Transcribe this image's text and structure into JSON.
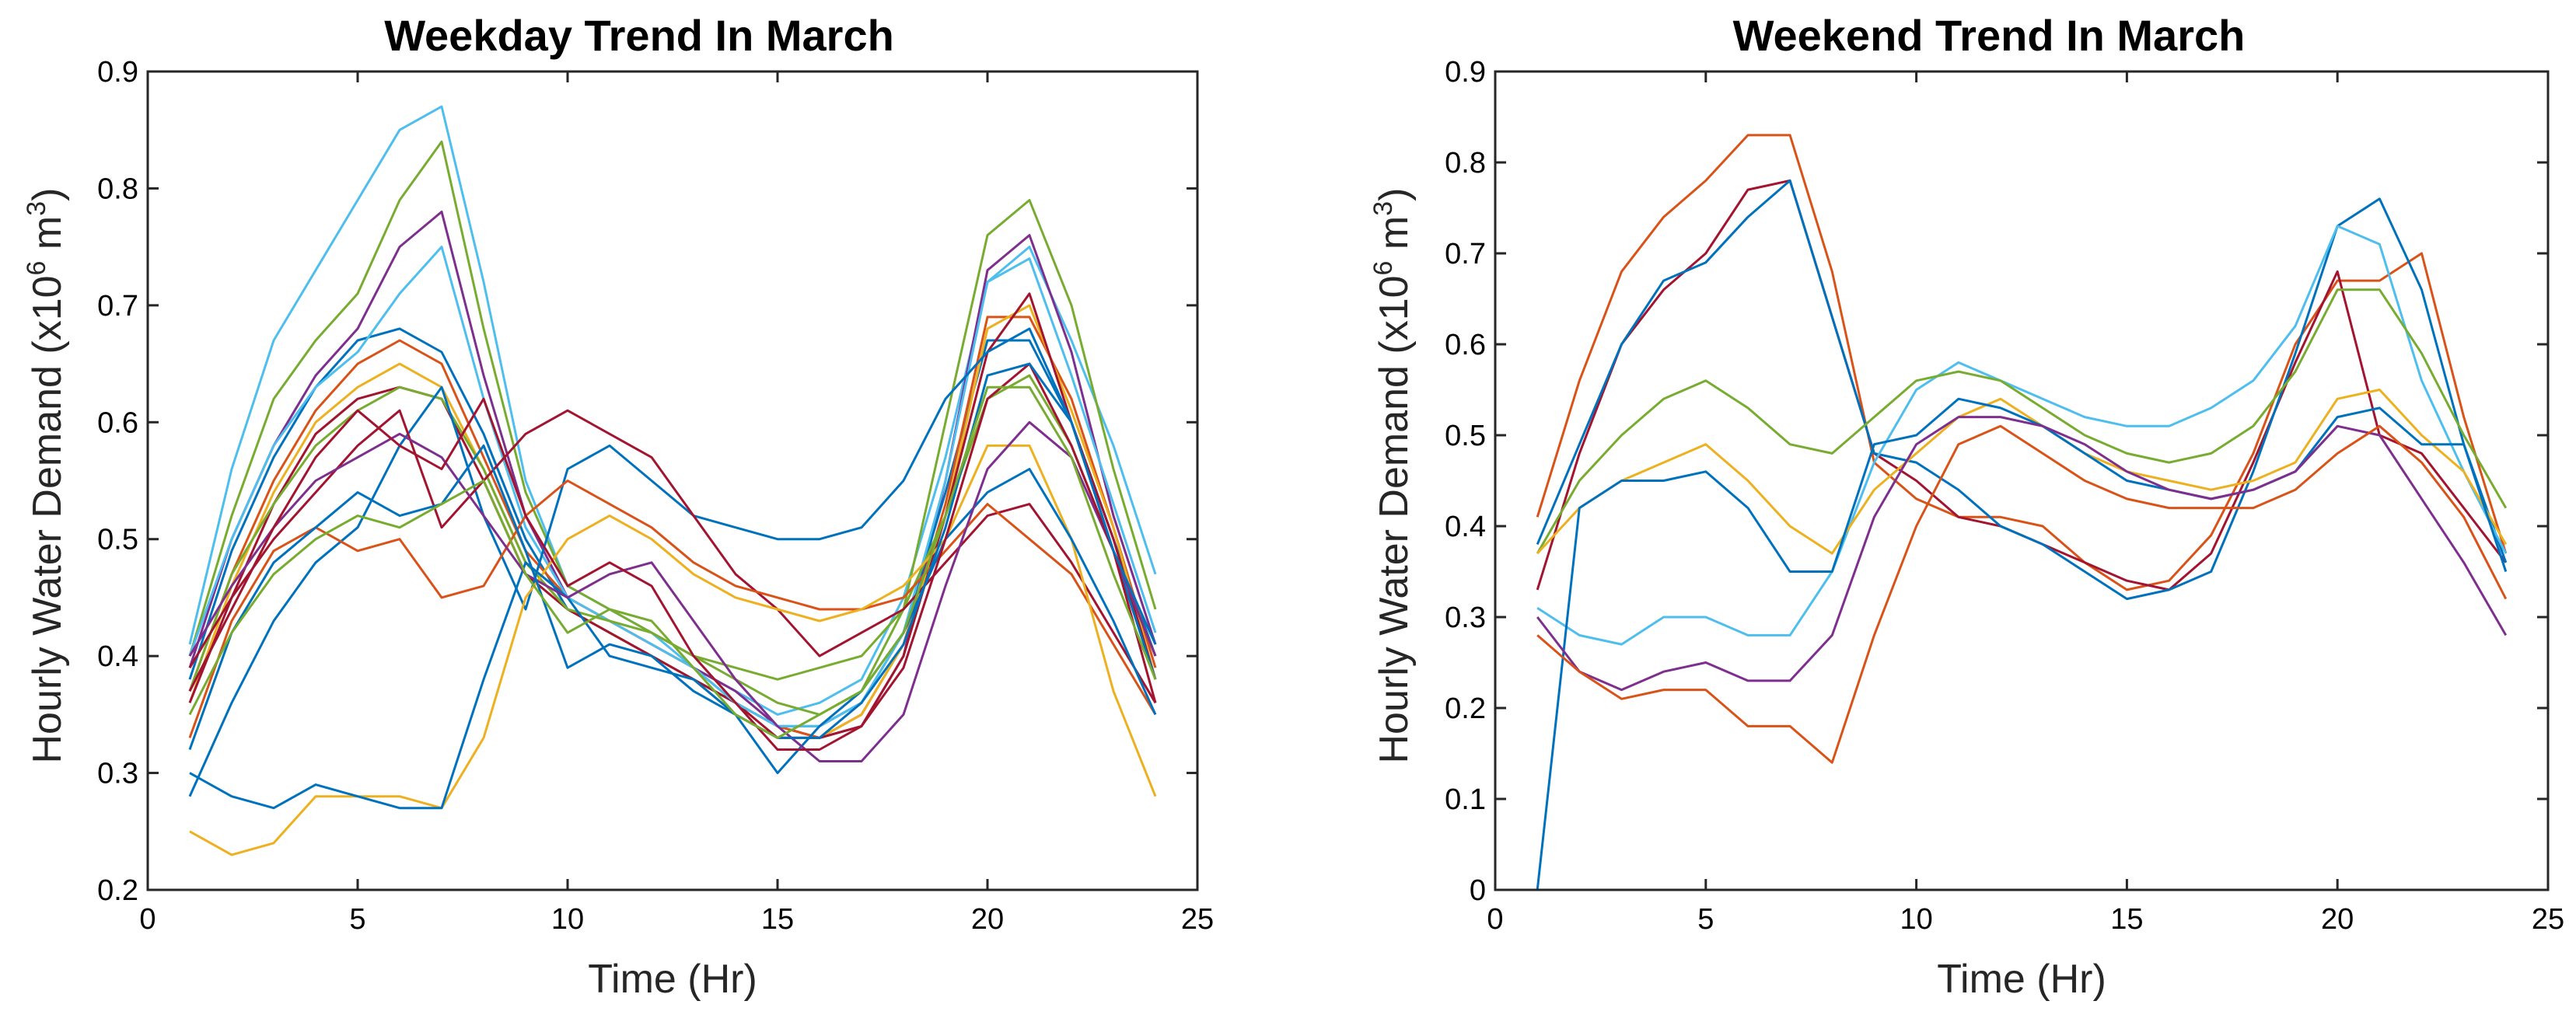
{
  "palette": [
    "#0072BD",
    "#D95319",
    "#EDB120",
    "#7E2F8E",
    "#77AC30",
    "#4DBEEE",
    "#A2142F"
  ],
  "chart_data": [
    {
      "type": "line",
      "title": "Weekday Trend In March",
      "xlabel": "Time (Hr)",
      "ylabel_prefix": "Hourly Water Demand (x10",
      "ylabel_exp": "6",
      "ylabel_mid": " m",
      "ylabel_exp2": "3",
      "ylabel_suffix": ")",
      "xlim": [
        0,
        25
      ],
      "ylim": [
        0.2,
        0.9
      ],
      "xticks": [
        0,
        5,
        10,
        15,
        20,
        25
      ],
      "yticks": [
        0.2,
        0.3,
        0.4,
        0.5,
        0.6,
        0.7,
        0.8,
        0.9
      ],
      "x": [
        1,
        2,
        3,
        4,
        5,
        6,
        7,
        8,
        9,
        10,
        11,
        12,
        13,
        14,
        15,
        16,
        17,
        18,
        19,
        20,
        21,
        22,
        23,
        24
      ],
      "series": [
        {
          "color": "#4DBEEE",
          "values": [
            0.41,
            0.56,
            0.67,
            0.73,
            0.79,
            0.85,
            0.87,
            0.72,
            0.55,
            0.46,
            0.44,
            0.42,
            0.39,
            0.37,
            0.35,
            0.36,
            0.38,
            0.45,
            0.57,
            0.72,
            0.75,
            0.67,
            0.58,
            0.47
          ]
        },
        {
          "color": "#77AC30",
          "values": [
            0.4,
            0.52,
            0.62,
            0.67,
            0.71,
            0.79,
            0.84,
            0.68,
            0.54,
            0.46,
            0.44,
            0.42,
            0.4,
            0.38,
            0.36,
            0.35,
            0.37,
            0.44,
            0.6,
            0.76,
            0.79,
            0.7,
            0.56,
            0.44
          ]
        },
        {
          "color": "#7E2F8E",
          "values": [
            0.39,
            0.5,
            0.58,
            0.64,
            0.68,
            0.75,
            0.78,
            0.64,
            0.52,
            0.45,
            0.43,
            0.41,
            0.39,
            0.37,
            0.34,
            0.33,
            0.34,
            0.4,
            0.55,
            0.73,
            0.76,
            0.66,
            0.52,
            0.41
          ]
        },
        {
          "color": "#0072BD",
          "values": [
            0.38,
            0.49,
            0.57,
            0.63,
            0.67,
            0.68,
            0.66,
            0.59,
            0.5,
            0.44,
            0.42,
            0.4,
            0.38,
            0.36,
            0.34,
            0.34,
            0.36,
            0.42,
            0.54,
            0.67,
            0.67,
            0.6,
            0.5,
            0.4
          ]
        },
        {
          "color": "#D95319",
          "values": [
            0.37,
            0.47,
            0.55,
            0.61,
            0.65,
            0.67,
            0.65,
            0.57,
            0.49,
            0.45,
            0.43,
            0.41,
            0.39,
            0.36,
            0.34,
            0.33,
            0.35,
            0.41,
            0.53,
            0.69,
            0.69,
            0.62,
            0.51,
            0.39
          ]
        },
        {
          "color": "#EDB120",
          "values": [
            0.36,
            0.46,
            0.54,
            0.6,
            0.63,
            0.65,
            0.63,
            0.56,
            0.48,
            0.44,
            0.42,
            0.4,
            0.38,
            0.35,
            0.33,
            0.33,
            0.35,
            0.41,
            0.52,
            0.68,
            0.7,
            0.61,
            0.51,
            0.38
          ]
        },
        {
          "color": "#A2142F",
          "values": [
            0.36,
            0.45,
            0.53,
            0.59,
            0.62,
            0.63,
            0.62,
            0.55,
            0.47,
            0.44,
            0.42,
            0.4,
            0.38,
            0.36,
            0.33,
            0.33,
            0.34,
            0.4,
            0.52,
            0.66,
            0.71,
            0.6,
            0.5,
            0.38
          ]
        },
        {
          "color": "#4DBEEE",
          "values": [
            0.4,
            0.5,
            0.58,
            0.63,
            0.66,
            0.71,
            0.75,
            0.62,
            0.51,
            0.45,
            0.43,
            0.41,
            0.39,
            0.36,
            0.34,
            0.34,
            0.36,
            0.42,
            0.55,
            0.72,
            0.74,
            0.64,
            0.53,
            0.42
          ]
        },
        {
          "color": "#77AC30",
          "values": [
            0.37,
            0.47,
            0.53,
            0.58,
            0.61,
            0.63,
            0.62,
            0.56,
            0.48,
            0.44,
            0.43,
            0.42,
            0.4,
            0.39,
            0.38,
            0.39,
            0.4,
            0.44,
            0.52,
            0.62,
            0.64,
            0.58,
            0.49,
            0.4
          ]
        },
        {
          "color": "#0072BD",
          "values": [
            0.28,
            0.36,
            0.43,
            0.48,
            0.51,
            0.58,
            0.63,
            0.52,
            0.44,
            0.56,
            0.58,
            0.55,
            0.52,
            0.51,
            0.5,
            0.5,
            0.51,
            0.55,
            0.62,
            0.66,
            0.68,
            0.6,
            0.49,
            0.38
          ]
        },
        {
          "color": "#A2142F",
          "values": [
            0.39,
            0.45,
            0.5,
            0.54,
            0.58,
            0.61,
            0.51,
            0.55,
            0.59,
            0.61,
            0.59,
            0.57,
            0.52,
            0.47,
            0.44,
            0.4,
            0.42,
            0.44,
            0.48,
            0.52,
            0.53,
            0.48,
            0.42,
            0.36
          ]
        },
        {
          "color": "#D95319",
          "values": [
            0.33,
            0.43,
            0.49,
            0.51,
            0.49,
            0.5,
            0.45,
            0.46,
            0.52,
            0.55,
            0.53,
            0.51,
            0.48,
            0.46,
            0.45,
            0.44,
            0.44,
            0.45,
            0.49,
            0.53,
            0.5,
            0.47,
            0.41,
            0.35
          ]
        },
        {
          "color": "#EDB120",
          "values": [
            0.25,
            0.23,
            0.24,
            0.28,
            0.28,
            0.28,
            0.27,
            0.33,
            0.45,
            0.5,
            0.52,
            0.5,
            0.47,
            0.45,
            0.44,
            0.43,
            0.44,
            0.46,
            0.5,
            0.58,
            0.58,
            0.5,
            0.37,
            0.28
          ]
        },
        {
          "color": "#0072BD",
          "values": [
            0.3,
            0.28,
            0.27,
            0.29,
            0.28,
            0.27,
            0.27,
            0.38,
            0.48,
            0.45,
            0.4,
            0.39,
            0.38,
            0.35,
            0.3,
            0.34,
            0.37,
            0.42,
            0.5,
            0.54,
            0.56,
            0.5,
            0.43,
            0.35
          ]
        },
        {
          "color": "#7E2F8E",
          "values": [
            0.4,
            0.46,
            0.51,
            0.55,
            0.57,
            0.59,
            0.57,
            0.52,
            0.47,
            0.45,
            0.47,
            0.48,
            0.43,
            0.38,
            0.34,
            0.31,
            0.31,
            0.35,
            0.46,
            0.56,
            0.6,
            0.57,
            0.49,
            0.4
          ]
        },
        {
          "color": "#A2142F",
          "values": [
            0.37,
            0.44,
            0.51,
            0.57,
            0.61,
            0.58,
            0.56,
            0.62,
            0.52,
            0.46,
            0.48,
            0.46,
            0.4,
            0.36,
            0.32,
            0.32,
            0.34,
            0.39,
            0.5,
            0.62,
            0.65,
            0.58,
            0.49,
            0.36
          ]
        },
        {
          "color": "#0072BD",
          "values": [
            0.32,
            0.42,
            0.48,
            0.51,
            0.54,
            0.52,
            0.53,
            0.58,
            0.49,
            0.39,
            0.41,
            0.4,
            0.37,
            0.35,
            0.33,
            0.33,
            0.36,
            0.41,
            0.51,
            0.64,
            0.65,
            0.6,
            0.49,
            0.41
          ]
        },
        {
          "color": "#77AC30",
          "values": [
            0.35,
            0.42,
            0.47,
            0.5,
            0.52,
            0.51,
            0.53,
            0.55,
            0.47,
            0.42,
            0.44,
            0.43,
            0.39,
            0.35,
            0.33,
            0.35,
            0.37,
            0.42,
            0.52,
            0.63,
            0.63,
            0.57,
            0.47,
            0.38
          ]
        }
      ]
    },
    {
      "type": "line",
      "title": "Weekend Trend In March",
      "xlabel": "Time (Hr)",
      "ylabel_prefix": "Hourly Water Demand (x10",
      "ylabel_exp": "6",
      "ylabel_mid": " m",
      "ylabel_exp2": "3",
      "ylabel_suffix": ")",
      "xlim": [
        0,
        25
      ],
      "ylim": [
        0,
        0.9
      ],
      "xticks": [
        0,
        5,
        10,
        15,
        20,
        25
      ],
      "yticks": [
        0,
        0.1,
        0.2,
        0.3,
        0.4,
        0.5,
        0.6,
        0.7,
        0.8,
        0.9
      ],
      "x": [
        1,
        2,
        3,
        4,
        5,
        6,
        7,
        8,
        9,
        10,
        11,
        12,
        13,
        14,
        15,
        16,
        17,
        18,
        19,
        20,
        21,
        22,
        23,
        24
      ],
      "series": [
        {
          "color": "#D95319",
          "values": [
            0.41,
            0.56,
            0.68,
            0.74,
            0.78,
            0.83,
            0.83,
            0.68,
            0.47,
            0.43,
            0.41,
            0.41,
            0.4,
            0.36,
            0.33,
            0.34,
            0.39,
            0.48,
            0.6,
            0.67,
            0.67,
            0.7,
            0.52,
            0.37
          ]
        },
        {
          "color": "#A2142F",
          "values": [
            0.33,
            0.48,
            0.6,
            0.66,
            0.7,
            0.77,
            0.78,
            0.63,
            0.48,
            0.45,
            0.41,
            0.4,
            0.38,
            0.36,
            0.34,
            0.33,
            0.37,
            0.47,
            0.58,
            0.68,
            0.5,
            0.48,
            0.42,
            0.36
          ]
        },
        {
          "color": "#0072BD",
          "values": [
            0.38,
            0.49,
            0.6,
            0.67,
            0.69,
            0.74,
            0.78,
            0.63,
            0.48,
            0.47,
            0.44,
            0.4,
            0.38,
            0.35,
            0.32,
            0.33,
            0.35,
            0.46,
            0.59,
            0.73,
            0.76,
            0.66,
            0.49,
            0.36
          ]
        },
        {
          "color": "#4DBEEE",
          "values": [
            0.31,
            0.28,
            0.27,
            0.3,
            0.3,
            0.28,
            0.28,
            0.35,
            0.47,
            0.55,
            0.58,
            0.56,
            0.54,
            0.52,
            0.51,
            0.51,
            0.53,
            0.56,
            0.62,
            0.73,
            0.71,
            0.56,
            0.46,
            0.37
          ]
        },
        {
          "color": "#77AC30",
          "values": [
            0.37,
            0.45,
            0.5,
            0.54,
            0.56,
            0.53,
            0.49,
            0.48,
            0.52,
            0.56,
            0.57,
            0.56,
            0.53,
            0.5,
            0.48,
            0.47,
            0.48,
            0.51,
            0.57,
            0.66,
            0.66,
            0.59,
            0.5,
            0.42
          ]
        },
        {
          "color": "#EDB120",
          "values": [
            0.37,
            0.42,
            0.45,
            0.47,
            0.49,
            0.45,
            0.4,
            0.37,
            0.44,
            0.48,
            0.52,
            0.54,
            0.51,
            0.48,
            0.46,
            0.45,
            0.44,
            0.45,
            0.47,
            0.54,
            0.55,
            0.5,
            0.46,
            0.38
          ]
        },
        {
          "color": "#0072BD",
          "values": [
            0.0,
            0.42,
            0.45,
            0.45,
            0.46,
            0.42,
            0.35,
            0.35,
            0.49,
            0.5,
            0.54,
            0.53,
            0.51,
            0.48,
            0.45,
            0.44,
            0.43,
            0.44,
            0.46,
            0.52,
            0.53,
            0.49,
            0.49,
            0.35
          ]
        },
        {
          "color": "#7E2F8E",
          "values": [
            0.3,
            0.24,
            0.22,
            0.24,
            0.25,
            0.23,
            0.23,
            0.28,
            0.41,
            0.49,
            0.52,
            0.52,
            0.51,
            0.49,
            0.46,
            0.44,
            0.43,
            0.44,
            0.46,
            0.51,
            0.5,
            0.43,
            0.36,
            0.28
          ]
        },
        {
          "color": "#D95319",
          "values": [
            0.28,
            0.24,
            0.21,
            0.22,
            0.22,
            0.18,
            0.18,
            0.14,
            0.28,
            0.4,
            0.49,
            0.51,
            0.48,
            0.45,
            0.43,
            0.42,
            0.42,
            0.42,
            0.44,
            0.48,
            0.51,
            0.47,
            0.41,
            0.32
          ]
        }
      ]
    }
  ]
}
